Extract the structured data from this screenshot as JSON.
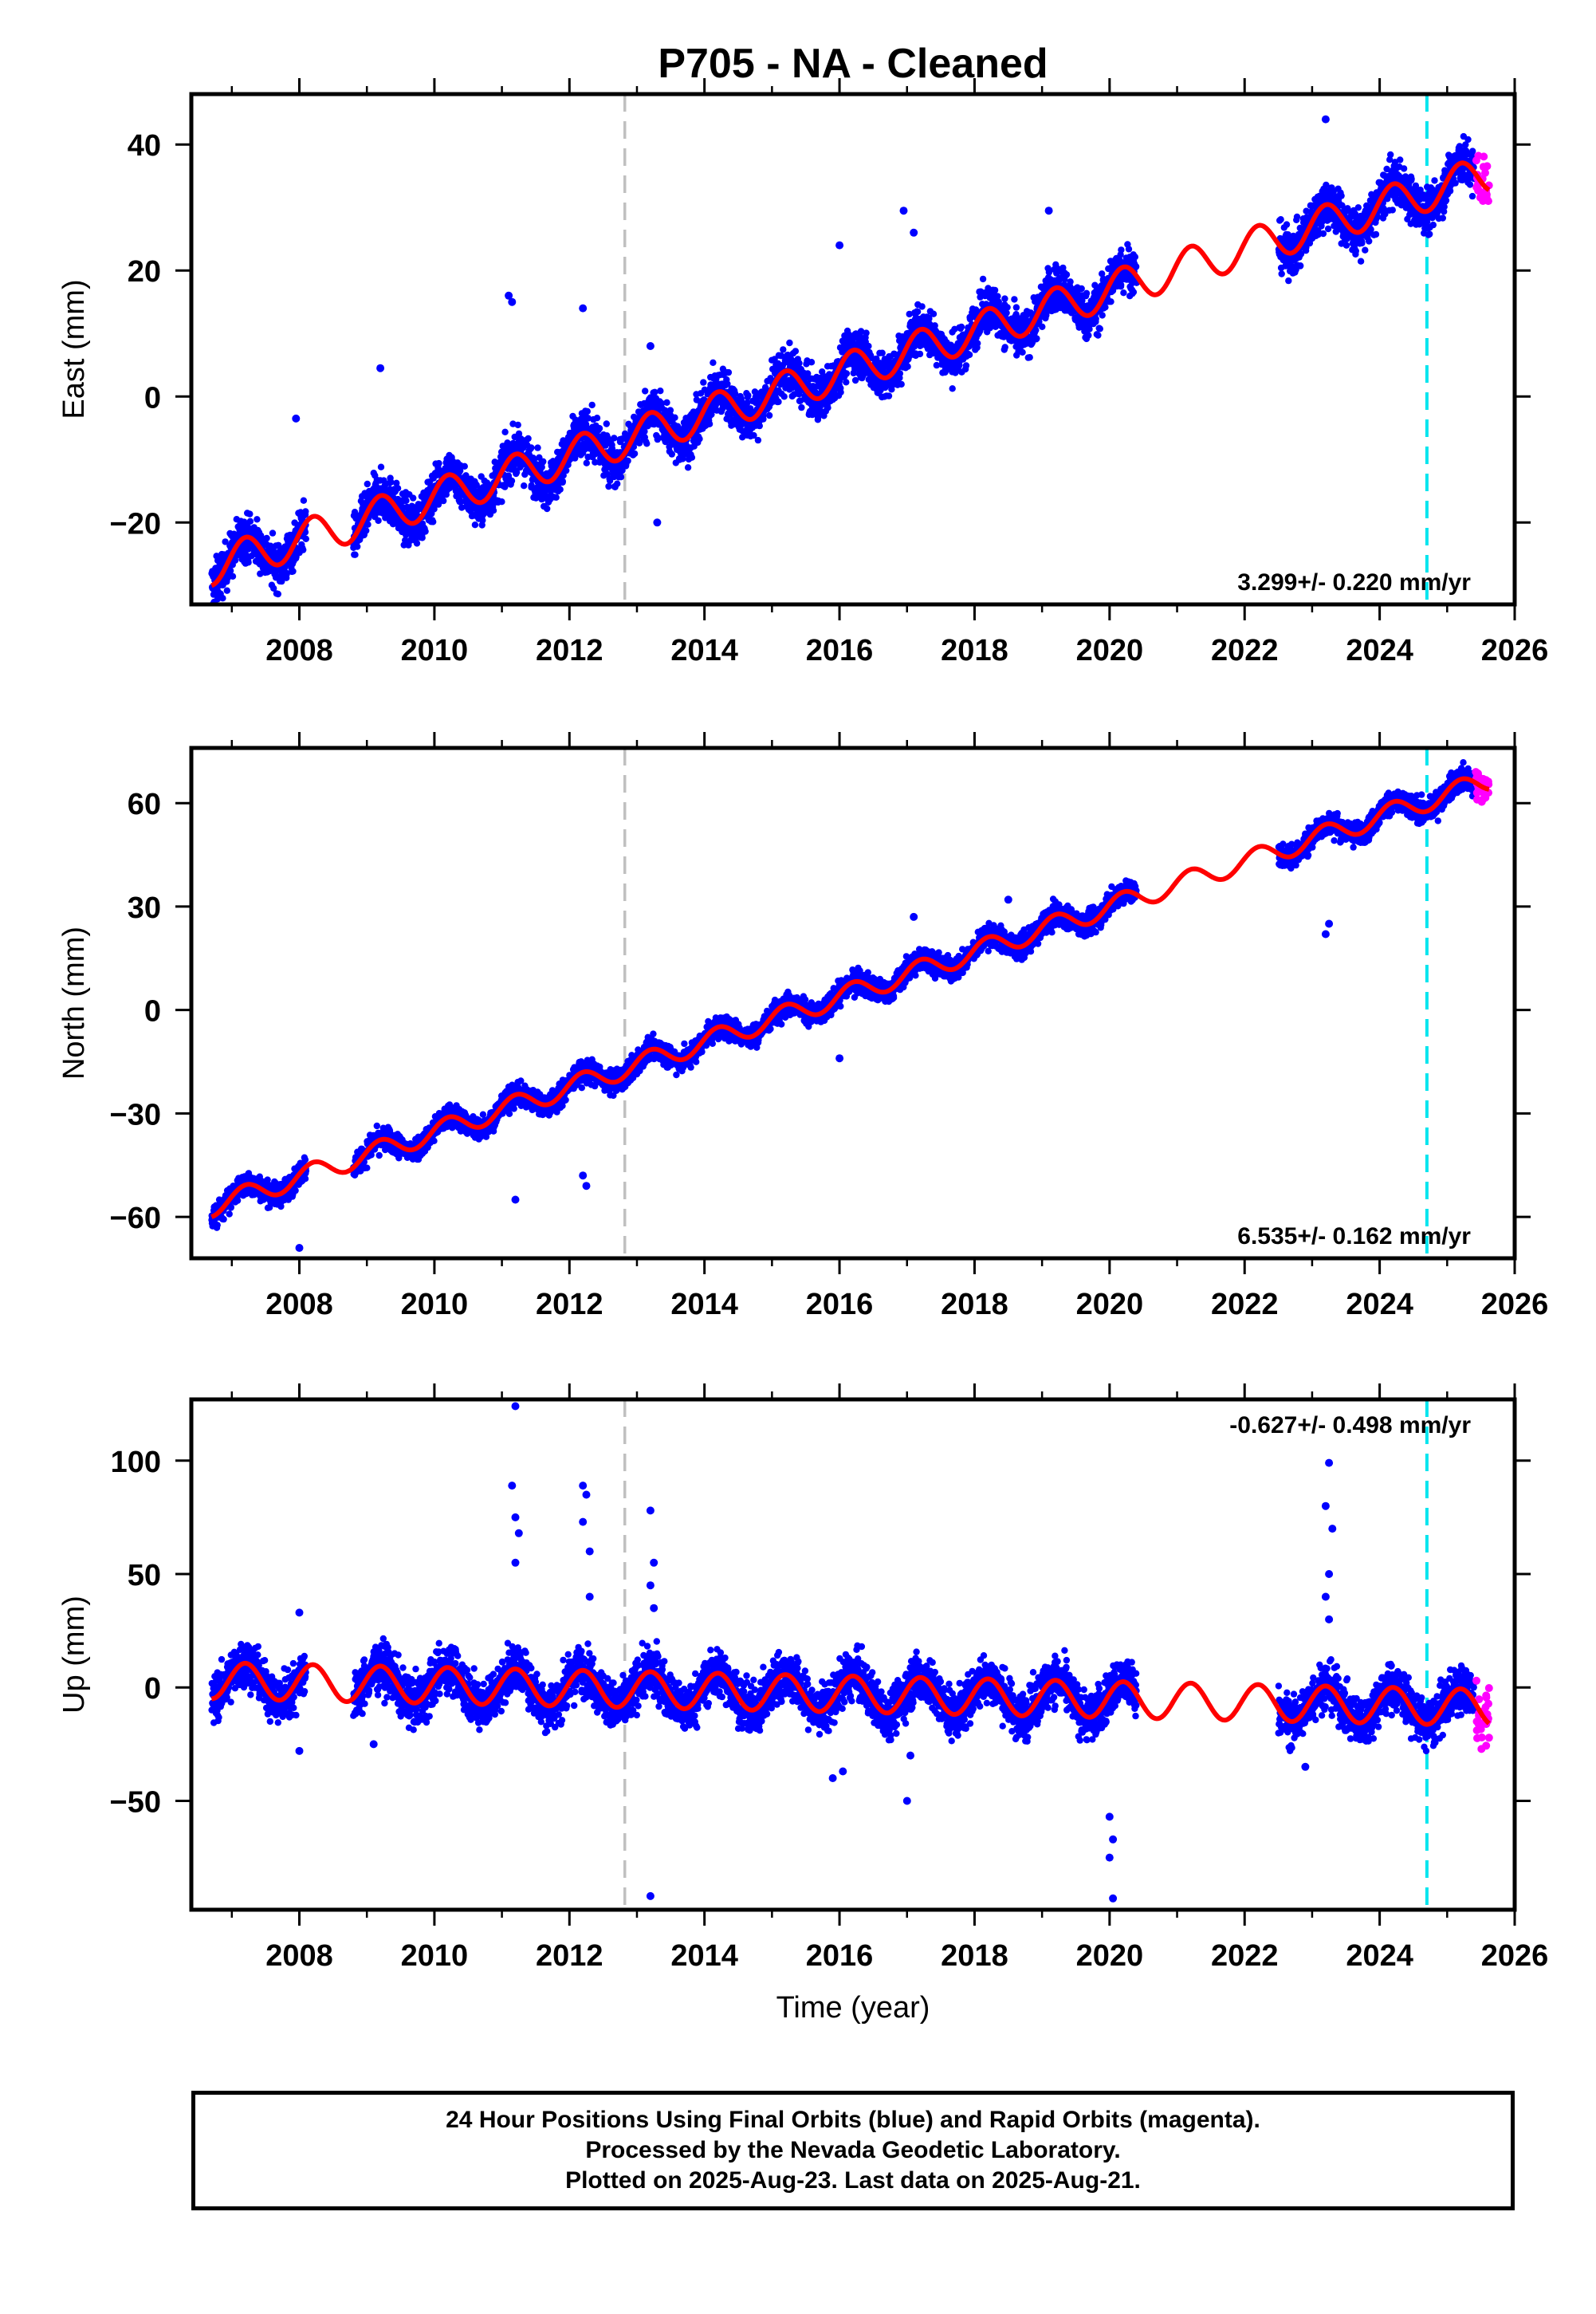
{
  "title": "P705  - NA - Cleaned",
  "colors": {
    "final_orbits": "#0000ff",
    "rapid_orbits": "#ff00ff",
    "model_fit": "#ff0000",
    "event_line_gray": "#c0c0c0",
    "event_line_cyan": "#00e5ee"
  },
  "footer": {
    "line1": "24 Hour Positions Using Final Orbits (blue) and Rapid Orbits (magenta).",
    "line2": "Processed by the Nevada Geodetic Laboratory.",
    "line3": "Plotted on 2025-Aug-23. Last data on 2025-Aug-21."
  },
  "chart_data": [
    {
      "type": "scatter",
      "component": "East",
      "ylabel": "East (mm)",
      "xlabel": "",
      "xlim": [
        2006.4,
        2026.0
      ],
      "ylim": [
        -33,
        48
      ],
      "xticks": [
        "2008",
        "2010",
        "2012",
        "2014",
        "2016",
        "2018",
        "2020",
        "2022",
        "2024",
        "2026"
      ],
      "yticks": [
        "−20",
        "0",
        "20",
        "40"
      ],
      "ytick_values": [
        -20,
        0,
        20,
        40
      ],
      "rate_text": "3.299+/- 0.220 mm/yr",
      "rate_position": "bottom-right",
      "model": {
        "start": 2006.7,
        "end": 2025.62,
        "intercept": -27.0,
        "trend": 3.299,
        "amplitude": 3.0
      },
      "final_segments": [
        [
          2006.7,
          2008.1
        ],
        [
          2008.8,
          2020.4
        ],
        [
          2022.5,
          2025.4
        ]
      ],
      "rapid_segment": [
        2025.4,
        2025.62
      ],
      "event_lines": [
        {
          "x": 2012.82,
          "color": "gray"
        },
        {
          "x": 2024.7,
          "color": "cyan"
        }
      ],
      "outliers": [
        [
          2011.1,
          16.0
        ],
        [
          2011.15,
          15.0
        ],
        [
          2012.2,
          14.0
        ],
        [
          2016.0,
          24.0
        ],
        [
          2016.95,
          29.5
        ],
        [
          2017.1,
          26.0
        ],
        [
          2019.1,
          29.5
        ],
        [
          2023.2,
          44.0
        ],
        [
          2009.2,
          4.5
        ],
        [
          2007.95,
          -3.5
        ],
        [
          2013.2,
          8.0
        ],
        [
          2013.3,
          -20.0
        ]
      ]
    },
    {
      "type": "scatter",
      "component": "North",
      "ylabel": "North (mm)",
      "xlabel": "",
      "xlim": [
        2006.4,
        2026.0
      ],
      "ylim": [
        -72,
        76
      ],
      "xticks": [
        "2008",
        "2010",
        "2012",
        "2014",
        "2016",
        "2018",
        "2020",
        "2022",
        "2024",
        "2026"
      ],
      "yticks": [
        "−60",
        "−30",
        "0",
        "30",
        "60"
      ],
      "ytick_values": [
        -60,
        -30,
        0,
        30,
        60
      ],
      "rate_text": "6.535+/- 0.162 mm/yr",
      "rate_position": "bottom-right",
      "model": {
        "start": 2006.7,
        "end": 2025.62,
        "intercept": -57.0,
        "trend": 6.535,
        "amplitude": 3.0
      },
      "final_segments": [
        [
          2006.7,
          2008.1
        ],
        [
          2008.8,
          2020.4
        ],
        [
          2022.5,
          2025.4
        ]
      ],
      "rapid_segment": [
        2025.4,
        2025.62
      ],
      "event_lines": [
        {
          "x": 2012.82,
          "color": "gray"
        },
        {
          "x": 2024.7,
          "color": "cyan"
        }
      ],
      "outliers": [
        [
          2008.0,
          -69.0
        ],
        [
          2011.2,
          -55.0
        ],
        [
          2012.2,
          -48.0
        ],
        [
          2012.25,
          -51.0
        ],
        [
          2023.2,
          22.0
        ],
        [
          2023.25,
          25.0
        ],
        [
          2016.0,
          -14.0
        ],
        [
          2017.1,
          27.0
        ],
        [
          2018.5,
          32.0
        ]
      ]
    },
    {
      "type": "scatter",
      "component": "Up",
      "ylabel": "Up (mm)",
      "xlabel": "Time (year)",
      "xlim": [
        2006.4,
        2026.0
      ],
      "ylim": [
        -98,
        127
      ],
      "xticks": [
        "2008",
        "2010",
        "2012",
        "2014",
        "2016",
        "2018",
        "2020",
        "2022",
        "2024",
        "2026"
      ],
      "yticks": [
        "−50",
        "0",
        "50",
        "100"
      ],
      "ytick_values": [
        -50,
        0,
        50,
        100
      ],
      "rate_text": "-0.627+/- 0.498 mm/yr",
      "rate_position": "top-right",
      "model": {
        "start": 2006.7,
        "end": 2025.62,
        "intercept": 3.0,
        "trend": -0.627,
        "amplitude": 8.0
      },
      "final_segments": [
        [
          2006.7,
          2008.1
        ],
        [
          2008.8,
          2020.4
        ],
        [
          2022.5,
          2025.4
        ]
      ],
      "rapid_segment": [
        2025.4,
        2025.62
      ],
      "event_lines": [
        {
          "x": 2012.82,
          "color": "gray"
        },
        {
          "x": 2024.7,
          "color": "cyan"
        }
      ],
      "outliers": [
        [
          2011.2,
          124.0
        ],
        [
          2011.15,
          89.0
        ],
        [
          2011.2,
          75.0
        ],
        [
          2011.25,
          68.0
        ],
        [
          2011.2,
          55.0
        ],
        [
          2012.2,
          89.0
        ],
        [
          2012.25,
          85.0
        ],
        [
          2012.2,
          73.0
        ],
        [
          2012.3,
          60.0
        ],
        [
          2012.3,
          40.0
        ],
        [
          2013.2,
          78.0
        ],
        [
          2013.25,
          55.0
        ],
        [
          2013.2,
          45.0
        ],
        [
          2013.25,
          35.0
        ],
        [
          2013.2,
          -92.0
        ],
        [
          2023.25,
          99.0
        ],
        [
          2023.2,
          80.0
        ],
        [
          2023.3,
          70.0
        ],
        [
          2023.25,
          50.0
        ],
        [
          2023.2,
          40.0
        ],
        [
          2023.25,
          30.0
        ],
        [
          2020.0,
          -57.0
        ],
        [
          2020.05,
          -67.0
        ],
        [
          2020.0,
          -75.0
        ],
        [
          2020.05,
          -93.0
        ],
        [
          2017.0,
          -50.0
        ],
        [
          2017.05,
          -30.0
        ],
        [
          2016.05,
          -37.0
        ],
        [
          2015.9,
          -40.0
        ],
        [
          2008.0,
          33.0
        ],
        [
          2008.0,
          -28.0
        ],
        [
          2009.1,
          -25.0
        ],
        [
          2022.9,
          -35.0
        ]
      ]
    }
  ]
}
